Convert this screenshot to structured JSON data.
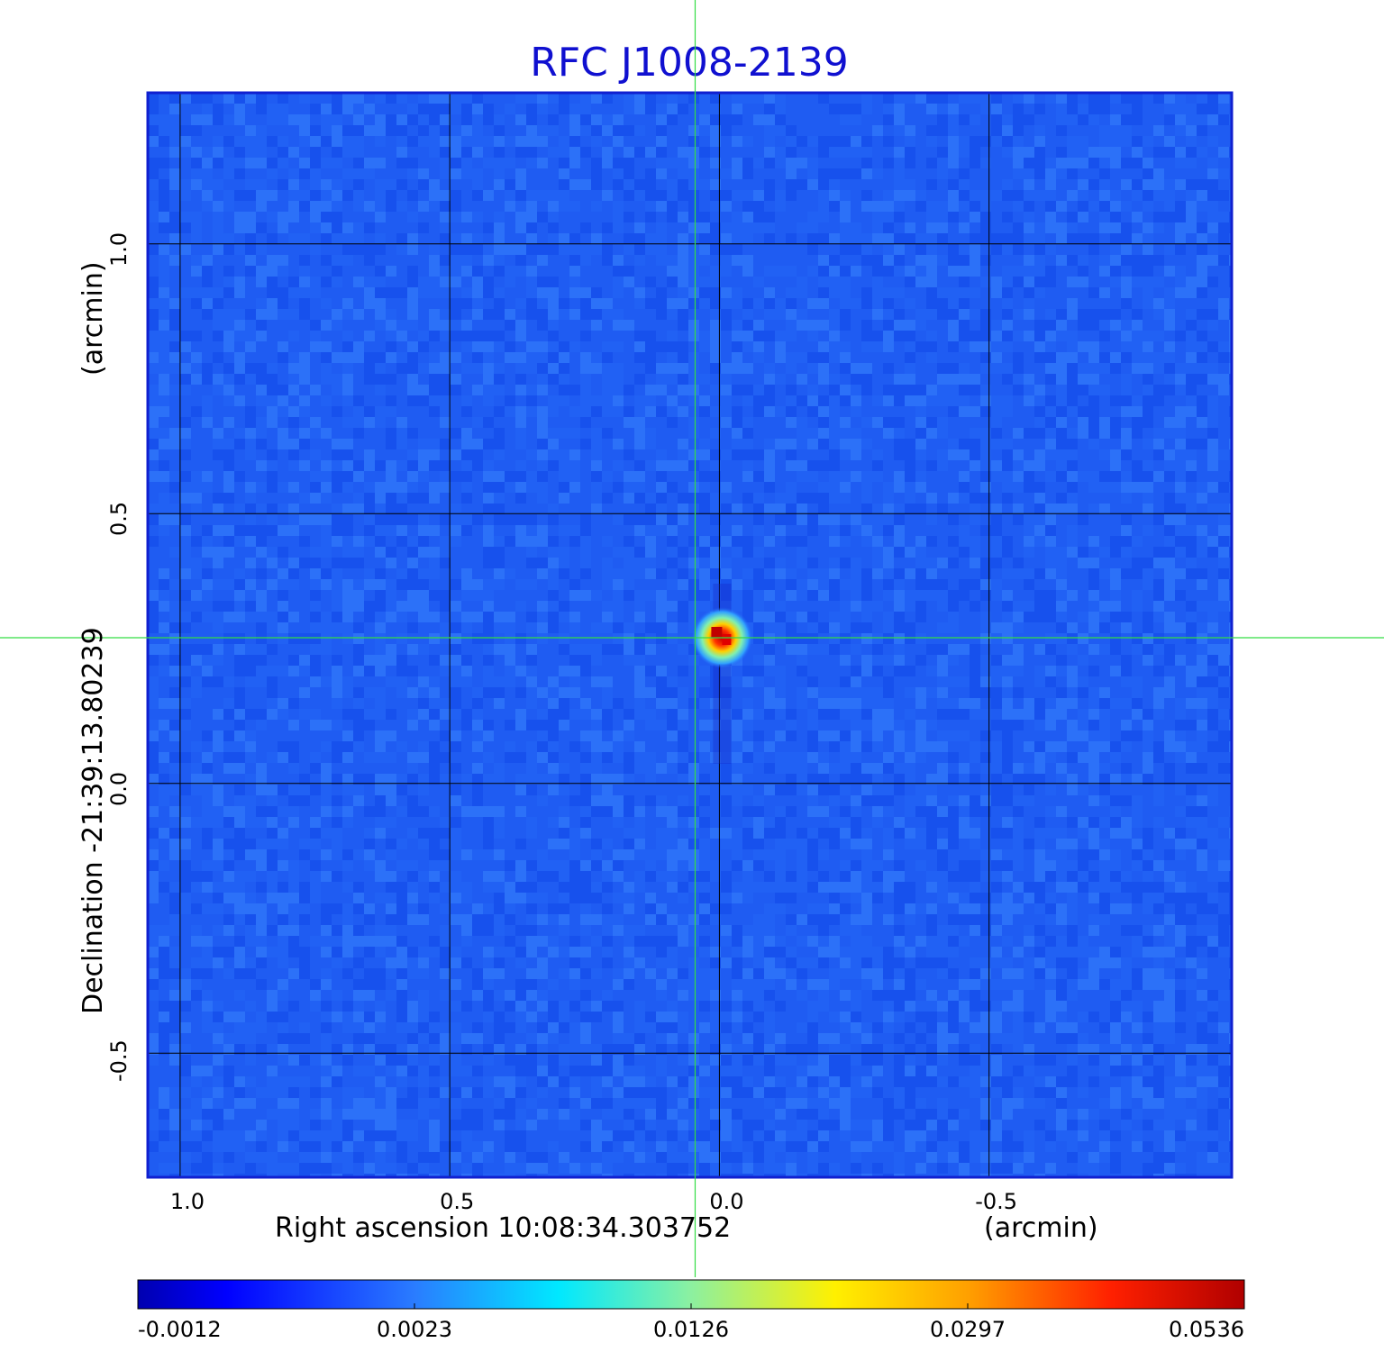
{
  "chart_data": {
    "type": "heatmap",
    "title": "RFC J1008-2139",
    "xlabel": "Right ascension  10:08:34.303752",
    "xlabel_unit": "(arcmin)",
    "ylabel": "Declination  -21:39:13.80239",
    "ylabel_unit": "(arcmin)",
    "x_ticks": [
      "1.0",
      "0.5",
      "0.0",
      "-0.5"
    ],
    "x_tick_values": [
      1.0,
      0.5,
      0.0,
      -0.5
    ],
    "y_ticks": [
      "1.0",
      "0.5",
      "0.0",
      "-0.5"
    ],
    "y_tick_values": [
      1.0,
      0.5,
      0.0,
      -0.5
    ],
    "xlim": [
      1.06,
      -0.95
    ],
    "ylim": [
      -0.73,
      1.28
    ],
    "grid": true,
    "colormap": "jet",
    "colorbar_ticks": [
      "-0.0012",
      "0.0023",
      "0.0126",
      "0.0297",
      "0.0536"
    ],
    "colorbar_values": [
      -0.0012,
      0.0023,
      0.0126,
      0.0297,
      0.0536
    ],
    "source": {
      "x": -0.005,
      "y": 0.27,
      "peak": 0.0536
    },
    "crosshair": {
      "x": 0.045,
      "y": 0.27
    },
    "colors": {
      "background_field": "#1f5cf2",
      "frame": "#1020d0",
      "title": "#1010d0",
      "crosshair": "#33dd44",
      "grid": "#000000"
    }
  }
}
